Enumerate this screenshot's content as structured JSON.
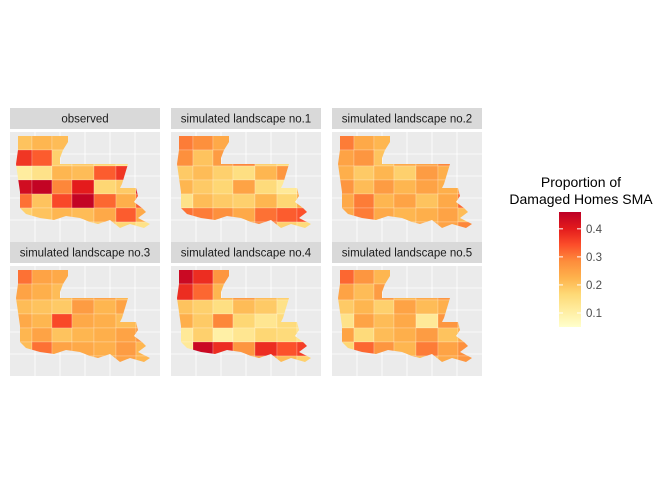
{
  "chart_data": {
    "type": "choropleth-facets",
    "facets": [
      {
        "label": "observed",
        "values": [
          0.2,
          0.22,
          0.21,
          0.24,
          0.33,
          0.24,
          0.37,
          0.37,
          0.33,
          0.18,
          0.19,
          0.17,
          0.14,
          0.19,
          0.11,
          0.14,
          0.22,
          0.21,
          0.33,
          0.37,
          0.43,
          0.43,
          0.45,
          0.29,
          0.4,
          0.17,
          0.19,
          0.42,
          0.31,
          0.2,
          0.35,
          0.45,
          0.32,
          0.23,
          0.33,
          0.18
        ]
      },
      {
        "label": "simulated landscape no.1",
        "values": [
          0.3,
          0.28,
          0.24,
          0.31,
          0.33,
          0.34,
          0.22,
          0.28,
          0.2,
          0.26,
          0.29,
          0.18,
          0.16,
          0.23,
          0.19,
          0.21,
          0.18,
          0.15,
          0.22,
          0.27,
          0.2,
          0.22,
          0.19,
          0.17,
          0.25,
          0.16,
          0.12,
          0.23,
          0.14,
          0.21,
          0.19,
          0.18,
          0.22,
          0.17,
          0.24,
          0.31
        ]
      },
      {
        "label": "simulated landscape no.2",
        "values": [
          0.3,
          0.24,
          0.22,
          0.23,
          0.25,
          0.21,
          0.22,
          0.25,
          0.27,
          0.2,
          0.24,
          0.25,
          0.29,
          0.27,
          0.23,
          0.19,
          0.22,
          0.18,
          0.26,
          0.23,
          0.29,
          0.27,
          0.21,
          0.26,
          0.22,
          0.25,
          0.23,
          0.27,
          0.24,
          0.3,
          0.22,
          0.25,
          0.2,
          0.24,
          0.32,
          0.24
        ]
      },
      {
        "label": "simulated landscape no.3",
        "values": [
          0.31,
          0.25,
          0.24,
          0.23,
          0.26,
          0.22,
          0.22,
          0.25,
          0.23,
          0.21,
          0.24,
          0.25,
          0.22,
          0.12,
          0.21,
          0.2,
          0.19,
          0.26,
          0.22,
          0.25,
          0.21,
          0.24,
          0.22,
          0.35,
          0.24,
          0.23,
          0.21,
          0.24,
          0.22,
          0.25,
          0.2,
          0.22,
          0.23,
          0.25,
          0.27,
          0.21
        ]
      },
      {
        "label": "simulated landscape no.4",
        "values": [
          0.44,
          0.38,
          0.27,
          0.38,
          0.34,
          0.36,
          0.24,
          0.38,
          0.32,
          0.22,
          0.26,
          0.21,
          0.18,
          0.11,
          0.2,
          0.18,
          0.15,
          0.21,
          0.19,
          0.14,
          0.27,
          0.23,
          0.19,
          0.29,
          0.17,
          0.13,
          0.16,
          0.15,
          0.12,
          0.18,
          0.1,
          0.13,
          0.17,
          0.16,
          0.14,
          0.12
        ]
      },
      {
        "label": "simulated landscape no.5",
        "values": [
          0.32,
          0.27,
          0.22,
          0.3,
          0.25,
          0.28,
          0.24,
          0.25,
          0.21,
          0.26,
          0.22,
          0.24,
          0.27,
          0.23,
          0.19,
          0.22,
          0.18,
          0.25,
          0.21,
          0.23,
          0.26,
          0.14,
          0.25,
          0.21,
          0.24,
          0.12,
          0.27,
          0.22,
          0.25,
          0.16,
          0.21,
          0.23,
          0.26,
          0.2,
          0.24,
          0.17
        ]
      }
    ],
    "legend": {
      "title_line1": "Proportion of",
      "title_line2": "Damaged Homes SMA",
      "ticks": [
        0.1,
        0.2,
        0.3,
        0.4
      ],
      "tick_labels": [
        "0.1",
        "0.2",
        "0.3",
        "0.4"
      ],
      "range": [
        0.05,
        0.46
      ],
      "placement": "right"
    },
    "palette": [
      "#ffffcc",
      "#ffeda0",
      "#fed976",
      "#feb24c",
      "#fd8d3c",
      "#fc4e2a",
      "#e31a1c",
      "#bd0026"
    ],
    "panel_background": "#ebebeb",
    "strip_background": "#d9d9d9",
    "grid_color": "#ffffff"
  }
}
